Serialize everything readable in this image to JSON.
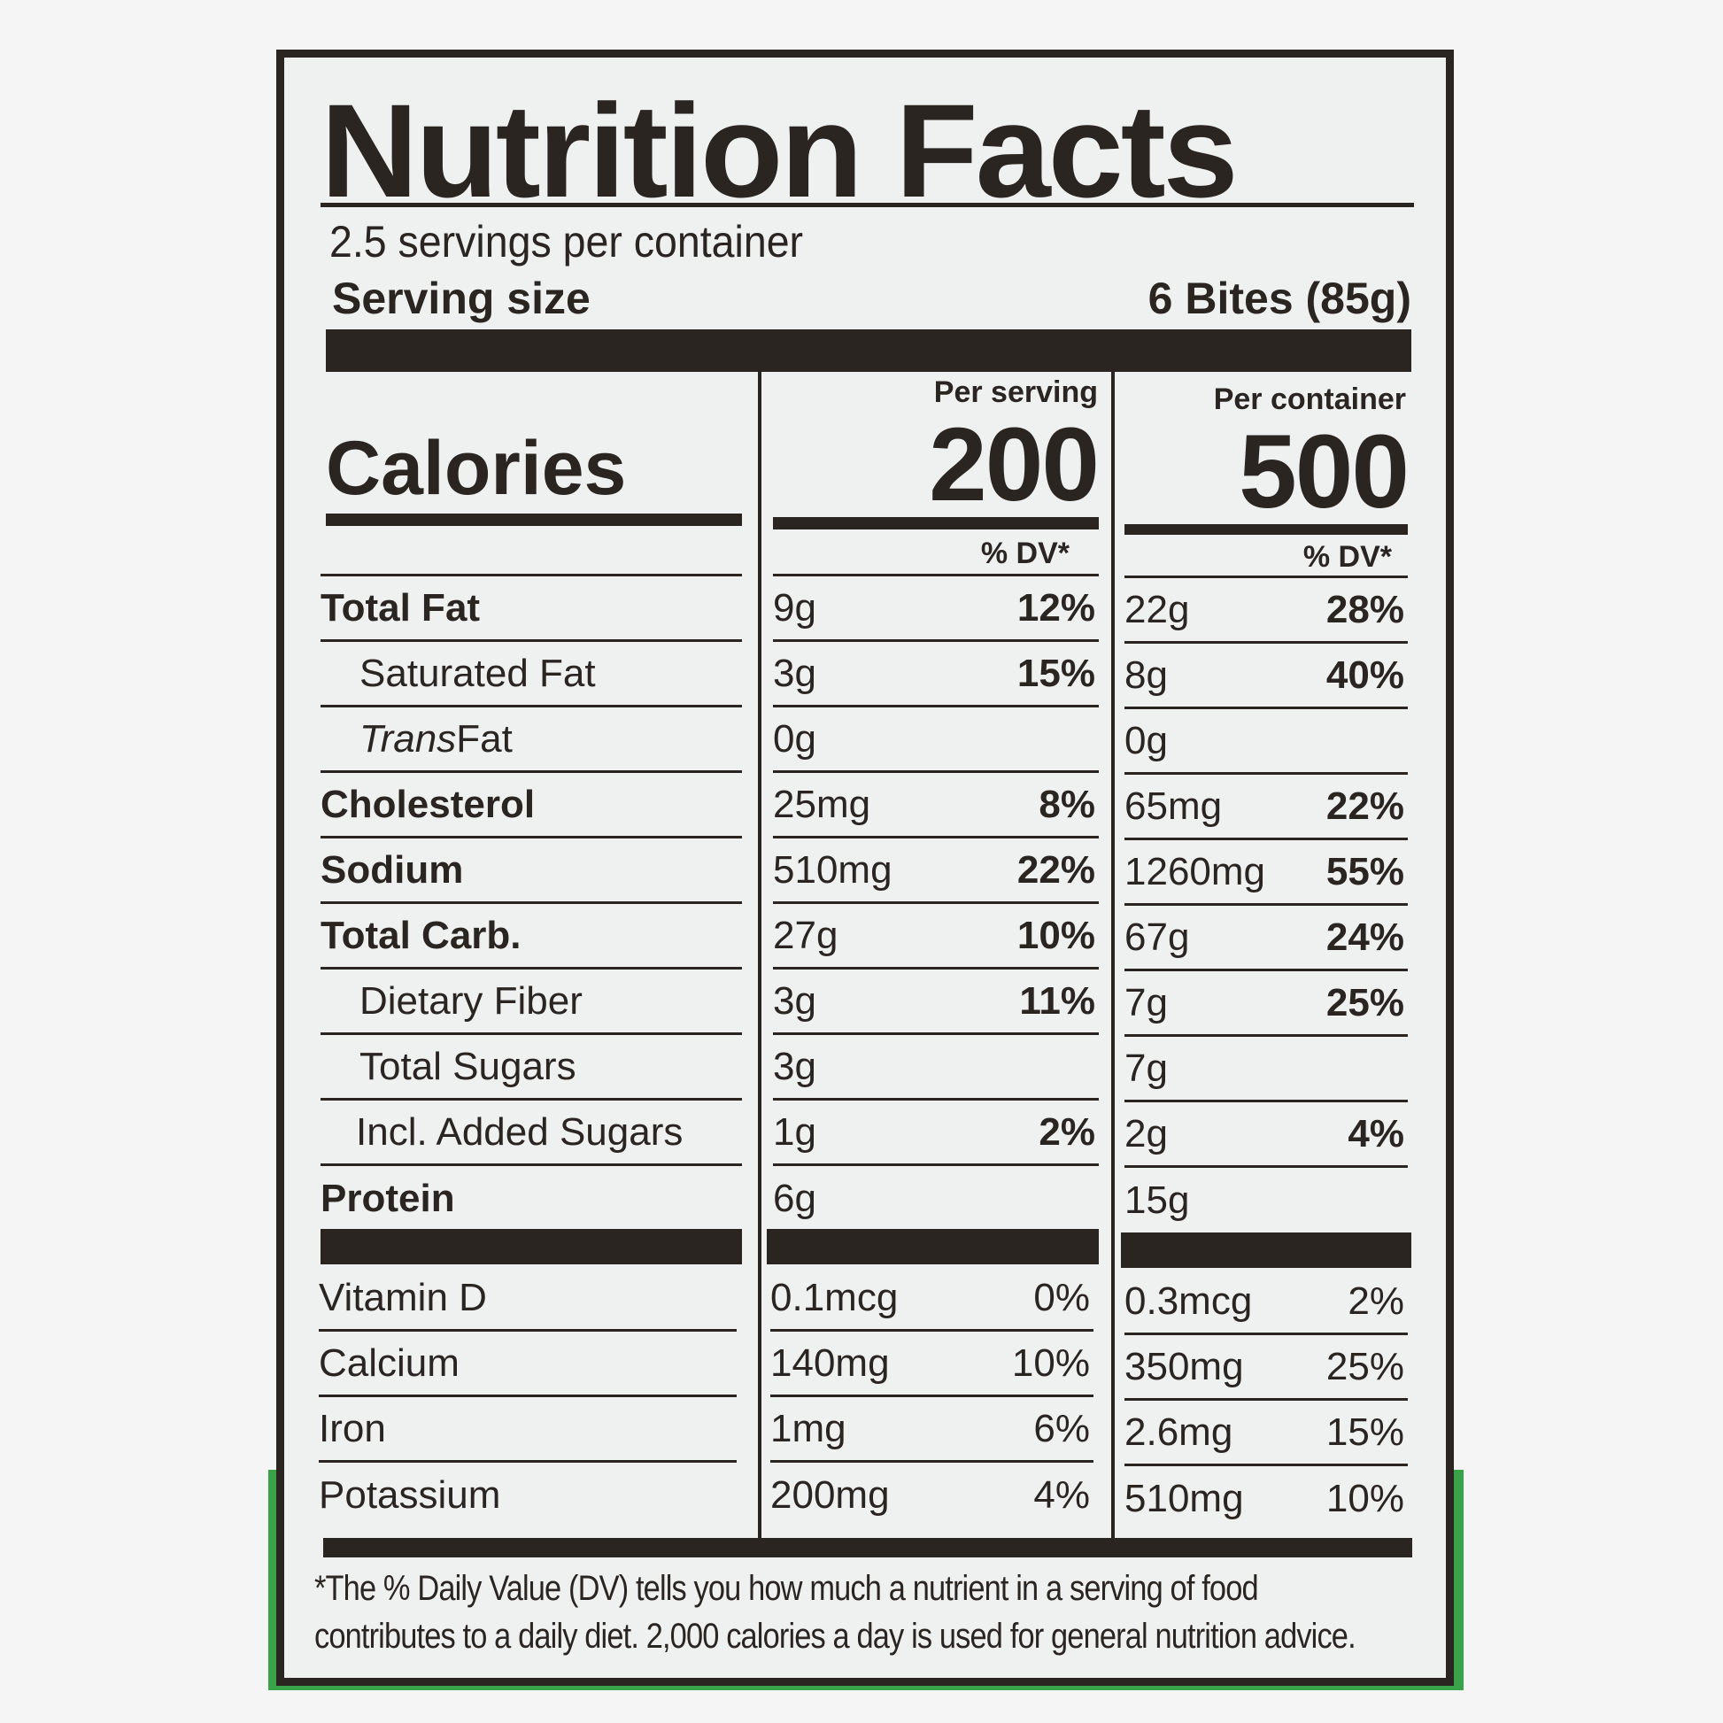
{
  "title": "Nutrition Facts",
  "servings_per_container": "2.5 servings per container",
  "serving_size": {
    "label": "Serving size",
    "value": "6 Bites (85g)"
  },
  "calories": {
    "label": "Calories",
    "per_serving_label": "Per serving",
    "per_serving": "200",
    "per_container_label": "Per container",
    "per_container": "500"
  },
  "dv_header": "% DV*",
  "nutrients": [
    {
      "label": "Total Fat",
      "style": "bold",
      "serving": "9g",
      "serving_dv": "12%",
      "container": "22g",
      "container_dv": "28%"
    },
    {
      "label": "Saturated Fat",
      "style": "indent",
      "serving": "3g",
      "serving_dv": "15%",
      "container": "8g",
      "container_dv": "40%"
    },
    {
      "label_italic": "Trans",
      "label": " Fat",
      "style": "indent",
      "serving": "0g",
      "serving_dv": "",
      "container": "0g",
      "container_dv": ""
    },
    {
      "label": "Cholesterol",
      "style": "bold",
      "serving": "25mg",
      "serving_dv": "8%",
      "container": "65mg",
      "container_dv": "22%"
    },
    {
      "label": "Sodium",
      "style": "bold",
      "serving": "510mg",
      "serving_dv": "22%",
      "container": "1260mg",
      "container_dv": "55%"
    },
    {
      "label": "Total Carb.",
      "style": "bold",
      "serving": "27g",
      "serving_dv": "10%",
      "container": "67g",
      "container_dv": "24%"
    },
    {
      "label": "Dietary Fiber",
      "style": "indent",
      "serving": "3g",
      "serving_dv": "11%",
      "container": "7g",
      "container_dv": "25%"
    },
    {
      "label": "Total Sugars",
      "style": "indent",
      "serving": "3g",
      "serving_dv": "",
      "container": "7g",
      "container_dv": ""
    },
    {
      "label": "Incl. Added Sugars",
      "style": "indent2",
      "serving": "1g",
      "serving_dv": "2%",
      "container": "2g",
      "container_dv": "4%"
    },
    {
      "label": "Protein",
      "style": "bold",
      "serving": "6g",
      "serving_dv": "",
      "container": "15g",
      "container_dv": ""
    }
  ],
  "vitamins": [
    {
      "label": "Vitamin D",
      "serving": "0.1mcg",
      "serving_dv": "0%",
      "container": "0.3mcg",
      "container_dv": "2%"
    },
    {
      "label": "Calcium",
      "serving": "140mg",
      "serving_dv": "10%",
      "container": "350mg",
      "container_dv": "25%"
    },
    {
      "label": "Iron",
      "serving": "1mg",
      "serving_dv": "6%",
      "container": "2.6mg",
      "container_dv": "15%"
    },
    {
      "label": "Potassium",
      "serving": "200mg",
      "serving_dv": "4%",
      "container": "510mg",
      "container_dv": "10%"
    }
  ],
  "footnote": {
    "line1": "*The % Daily Value (DV) tells you how much a nutrient in a serving of food",
    "line2": "contributes to a daily diet. 2,000 calories a day is used for general nutrition advice."
  },
  "colors": {
    "ink": "#2b2522",
    "label_bg": "#eff1f0",
    "package_green": "#3aa34a"
  }
}
